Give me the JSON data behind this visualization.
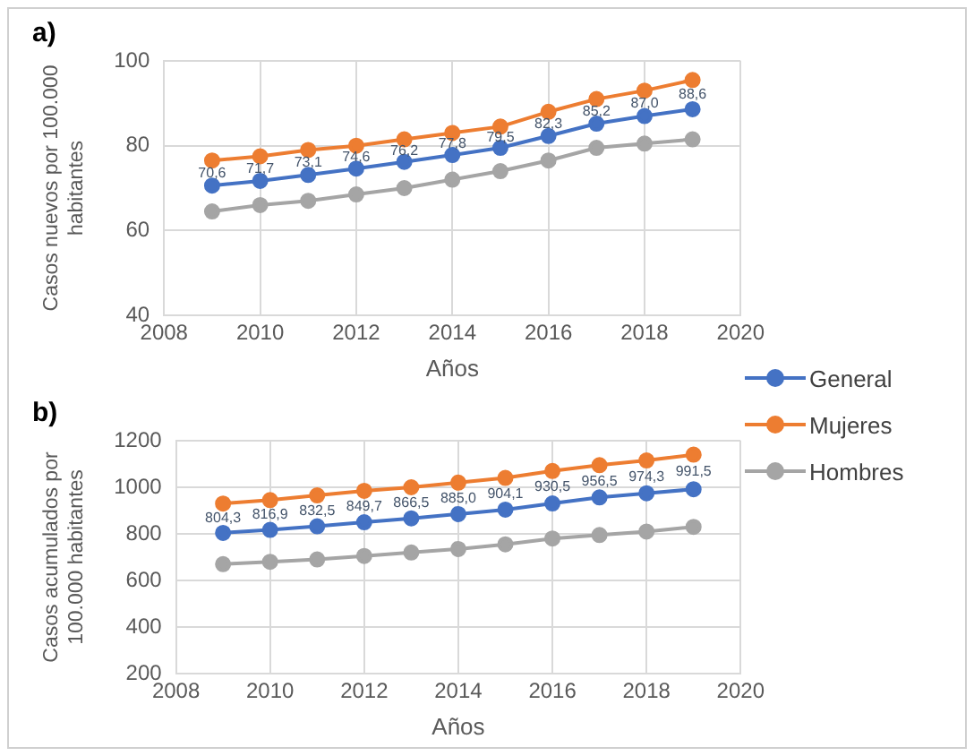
{
  "chart_data": [
    {
      "type": "line",
      "title": "a)",
      "xlabel": "Años",
      "ylabel": "Casos nuevos por 100.000 habitantes",
      "x": [
        2009,
        2010,
        2011,
        2012,
        2013,
        2014,
        2015,
        2016,
        2017,
        2018,
        2019
      ],
      "xlim": [
        2008,
        2020
      ],
      "xticks": [
        2008,
        2010,
        2012,
        2014,
        2016,
        2018,
        2020
      ],
      "ylim": [
        40,
        100
      ],
      "yticks": [
        40,
        60,
        80,
        100
      ],
      "grid": true,
      "legend": "right",
      "marker": "circle",
      "series": [
        {
          "name": "General",
          "color": "#4472c4",
          "values": [
            70.6,
            71.7,
            73.1,
            74.6,
            76.2,
            77.8,
            79.5,
            82.3,
            85.2,
            87.0,
            88.6
          ],
          "value_labels": [
            "70,6",
            "71,7",
            "73,1",
            "74,6",
            "76,2",
            "77,8",
            "79,5",
            "82,3",
            "85,2",
            "87,0",
            "88,6"
          ]
        },
        {
          "name": "Mujeres",
          "color": "#ed7d31",
          "values": [
            76.5,
            77.5,
            79,
            80,
            81.5,
            83,
            84.5,
            88,
            91,
            93,
            95.5
          ]
        },
        {
          "name": "Hombres",
          "color": "#a5a5a5",
          "values": [
            64.5,
            66,
            67,
            68.5,
            70,
            72,
            74,
            76.5,
            79.5,
            80.5,
            81.5
          ]
        }
      ]
    },
    {
      "type": "line",
      "title": "b)",
      "xlabel": "Años",
      "ylabel": "Casos acumulados por 100.000 habitantes",
      "x": [
        2009,
        2010,
        2011,
        2012,
        2013,
        2014,
        2015,
        2016,
        2017,
        2018,
        2019
      ],
      "xlim": [
        2008,
        2020
      ],
      "xticks": [
        2008,
        2010,
        2012,
        2014,
        2016,
        2018,
        2020
      ],
      "ylim": [
        200,
        1200
      ],
      "yticks": [
        200,
        400,
        600,
        800,
        1000,
        1200
      ],
      "grid": true,
      "marker": "circle",
      "series": [
        {
          "color": "#4472c4",
          "values": [
            804.3,
            816.9,
            832.5,
            849.7,
            866.5,
            885.0,
            904.1,
            930.5,
            956.5,
            974.3,
            991.5
          ],
          "value_labels": [
            "804,3",
            "816,9",
            "832,5",
            "849,7",
            "866,5",
            "885,0",
            "904,1",
            "930,5",
            "956,5",
            "974,3",
            "991,5"
          ]
        },
        {
          "color": "#ed7d31",
          "values": [
            930,
            945,
            965,
            985,
            1000,
            1020,
            1040,
            1070,
            1095,
            1115,
            1140
          ]
        },
        {
          "color": "#a5a5a5",
          "values": [
            670,
            680,
            690,
            705,
            720,
            735,
            755,
            780,
            795,
            810,
            830
          ]
        }
      ]
    }
  ]
}
